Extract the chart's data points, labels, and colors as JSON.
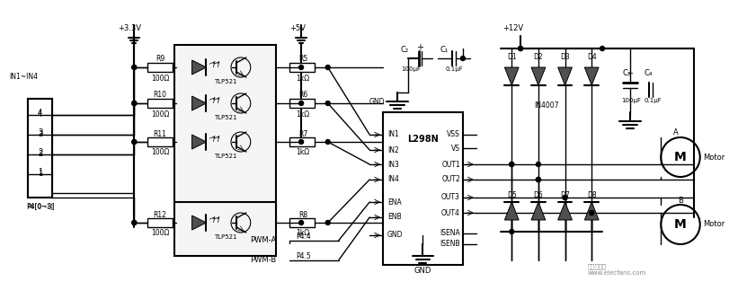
{
  "bg_color": "#f0f0f0",
  "line_color": "#000000",
  "fill_color": "#404040",
  "light_gray": "#d0d0d0",
  "box_color": "#e8e8e8",
  "title": "",
  "watermark": "电子发烧友\nwww.elecfans.com",
  "labels": {
    "vcc33": "+3.3V",
    "vcc5": "+5V",
    "vcc12": "+12V",
    "in1in4": "IN1~IN4",
    "p4_03": "P4[0~3]",
    "p4_4": "P4.4",
    "p4_5": "P4.5",
    "gnd1": "GND",
    "gnd2": "GND",
    "r9": "R9",
    "r9v": "100Ω",
    "r10": "R10",
    "r10v": "100Ω",
    "r11": "R11",
    "r11v": "100Ω",
    "r12": "R12",
    "r12v": "100Ω",
    "r5": "R5",
    "r5v": "1kΩ",
    "r6": "R6",
    "r6v": "1kΩ",
    "r7": "R7",
    "r7v": "1kΩ",
    "r8": "R8",
    "r8v": "1kΩ",
    "tlp1": "TLP521",
    "tlp2": "TLP521",
    "tlp3": "TLP521",
    "tlp4": "TLP521",
    "pwma": "PWM-A",
    "pwmb": "PWM-B",
    "l298n": "L298N",
    "in1": "IN1",
    "in2": "IN2",
    "in3": "IN3",
    "in4": "IN4",
    "ena": "ENA",
    "enb": "ENB",
    "vss": "VSS",
    "vs": "VS",
    "out1": "OUT1",
    "out2": "OUT2",
    "out3": "OUT3",
    "out4": "OUT4",
    "isena": "ISENA",
    "isenb": "ISENB",
    "gnd_l": "GND",
    "c1": "C₁",
    "c2": "C₂",
    "c3": "C₃",
    "c4": "C₄",
    "c1v": "0.1μF",
    "c2v": "100μF",
    "c3v": "100μF",
    "c4v": "0.1μF",
    "d1": "D1",
    "d2": "D2",
    "d3": "D3",
    "d4": "D4",
    "d5": "D5",
    "d6": "D6",
    "d7": "D7",
    "d8": "D8",
    "in4007": "IN4007",
    "motorA": "Motor",
    "motorB": "Motor",
    "labelA": "A",
    "labelB": "B",
    "pins": [
      "4",
      "3",
      "2",
      "1"
    ]
  }
}
